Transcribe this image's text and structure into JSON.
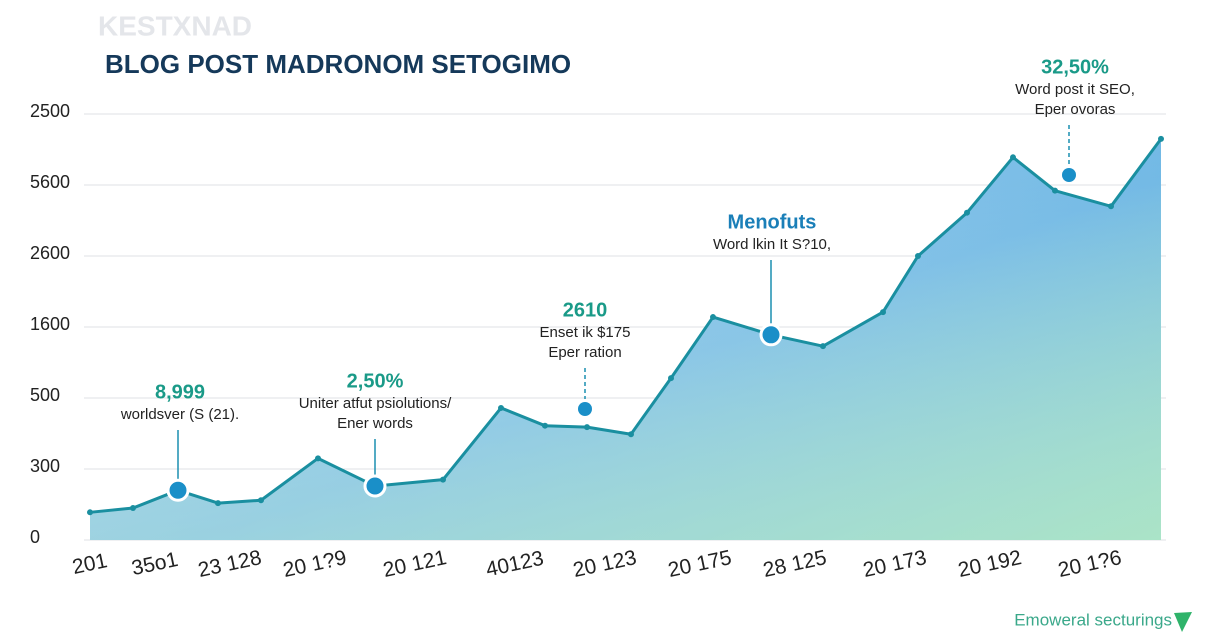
{
  "chart_data": {
    "type": "area",
    "watermark": "KESTXNAD",
    "title": "BLOG POST MADRONOM SETOGIMO",
    "footer": "Emoweral secturings",
    "x": [
      0,
      4.3,
      8.8,
      12.8,
      17.1,
      22.8,
      28.5,
      35.3,
      41.1,
      45.5,
      49.7,
      54.1,
      58.1,
      62.3,
      68.1,
      73.3,
      79.3,
      82.8,
      87.7,
      92.3,
      96.5,
      102.1,
      107.1
    ],
    "values": [
      0.39,
      0.45,
      0.7,
      0.52,
      0.56,
      1.15,
      0.76,
      0.85,
      1.86,
      1.61,
      1.59,
      1.49,
      2.28,
      3.14,
      2.89,
      2.73,
      3.21,
      4.0,
      4.61,
      5.39,
      4.92,
      4.7,
      5.65
    ],
    "xlim": [
      0,
      107.1
    ],
    "ylim": [
      0,
      6
    ],
    "xticks": [
      {
        "value": 0,
        "label": "201"
      },
      {
        "value": 6.5,
        "label": "35o1"
      },
      {
        "value": 14,
        "label": "23 128"
      },
      {
        "value": 22.5,
        "label": "20 1?9"
      },
      {
        "value": 32.5,
        "label": "20 121"
      },
      {
        "value": 42.5,
        "label": "40123"
      },
      {
        "value": 51.5,
        "label": "20 123"
      },
      {
        "value": 61,
        "label": "20 175"
      },
      {
        "value": 70.5,
        "label": "28 125"
      },
      {
        "value": 80.5,
        "label": "20 173"
      },
      {
        "value": 90,
        "label": "20 192"
      },
      {
        "value": 100,
        "label": "20 1?6"
      }
    ],
    "yticks": [
      {
        "value": 0,
        "label": "0"
      },
      {
        "value": 1,
        "label": "300"
      },
      {
        "value": 2,
        "label": "500"
      },
      {
        "value": 3,
        "label": "1600"
      },
      {
        "value": 4,
        "label": "2600"
      },
      {
        "value": 5,
        "label": "5600"
      },
      {
        "value": 6,
        "label": "2500"
      }
    ],
    "grid": true,
    "color": "#1a8fa0",
    "annotations": [
      {
        "title": "8,999",
        "lines": [
          "worldsver (S (21)."
        ]
      },
      {
        "title": "2,50%",
        "lines": [
          "Uniter atfut psiolutions/",
          "Ener words"
        ]
      },
      {
        "title": "2610",
        "lines": [
          "Enset ik $175",
          "Eper ration"
        ]
      },
      {
        "title": "Menofuts",
        "lines": [
          "Word lkin It S?10,"
        ]
      },
      {
        "title": "32,50%",
        "lines": [
          "Word post it SEO,",
          "Eper ovoras"
        ]
      }
    ]
  }
}
